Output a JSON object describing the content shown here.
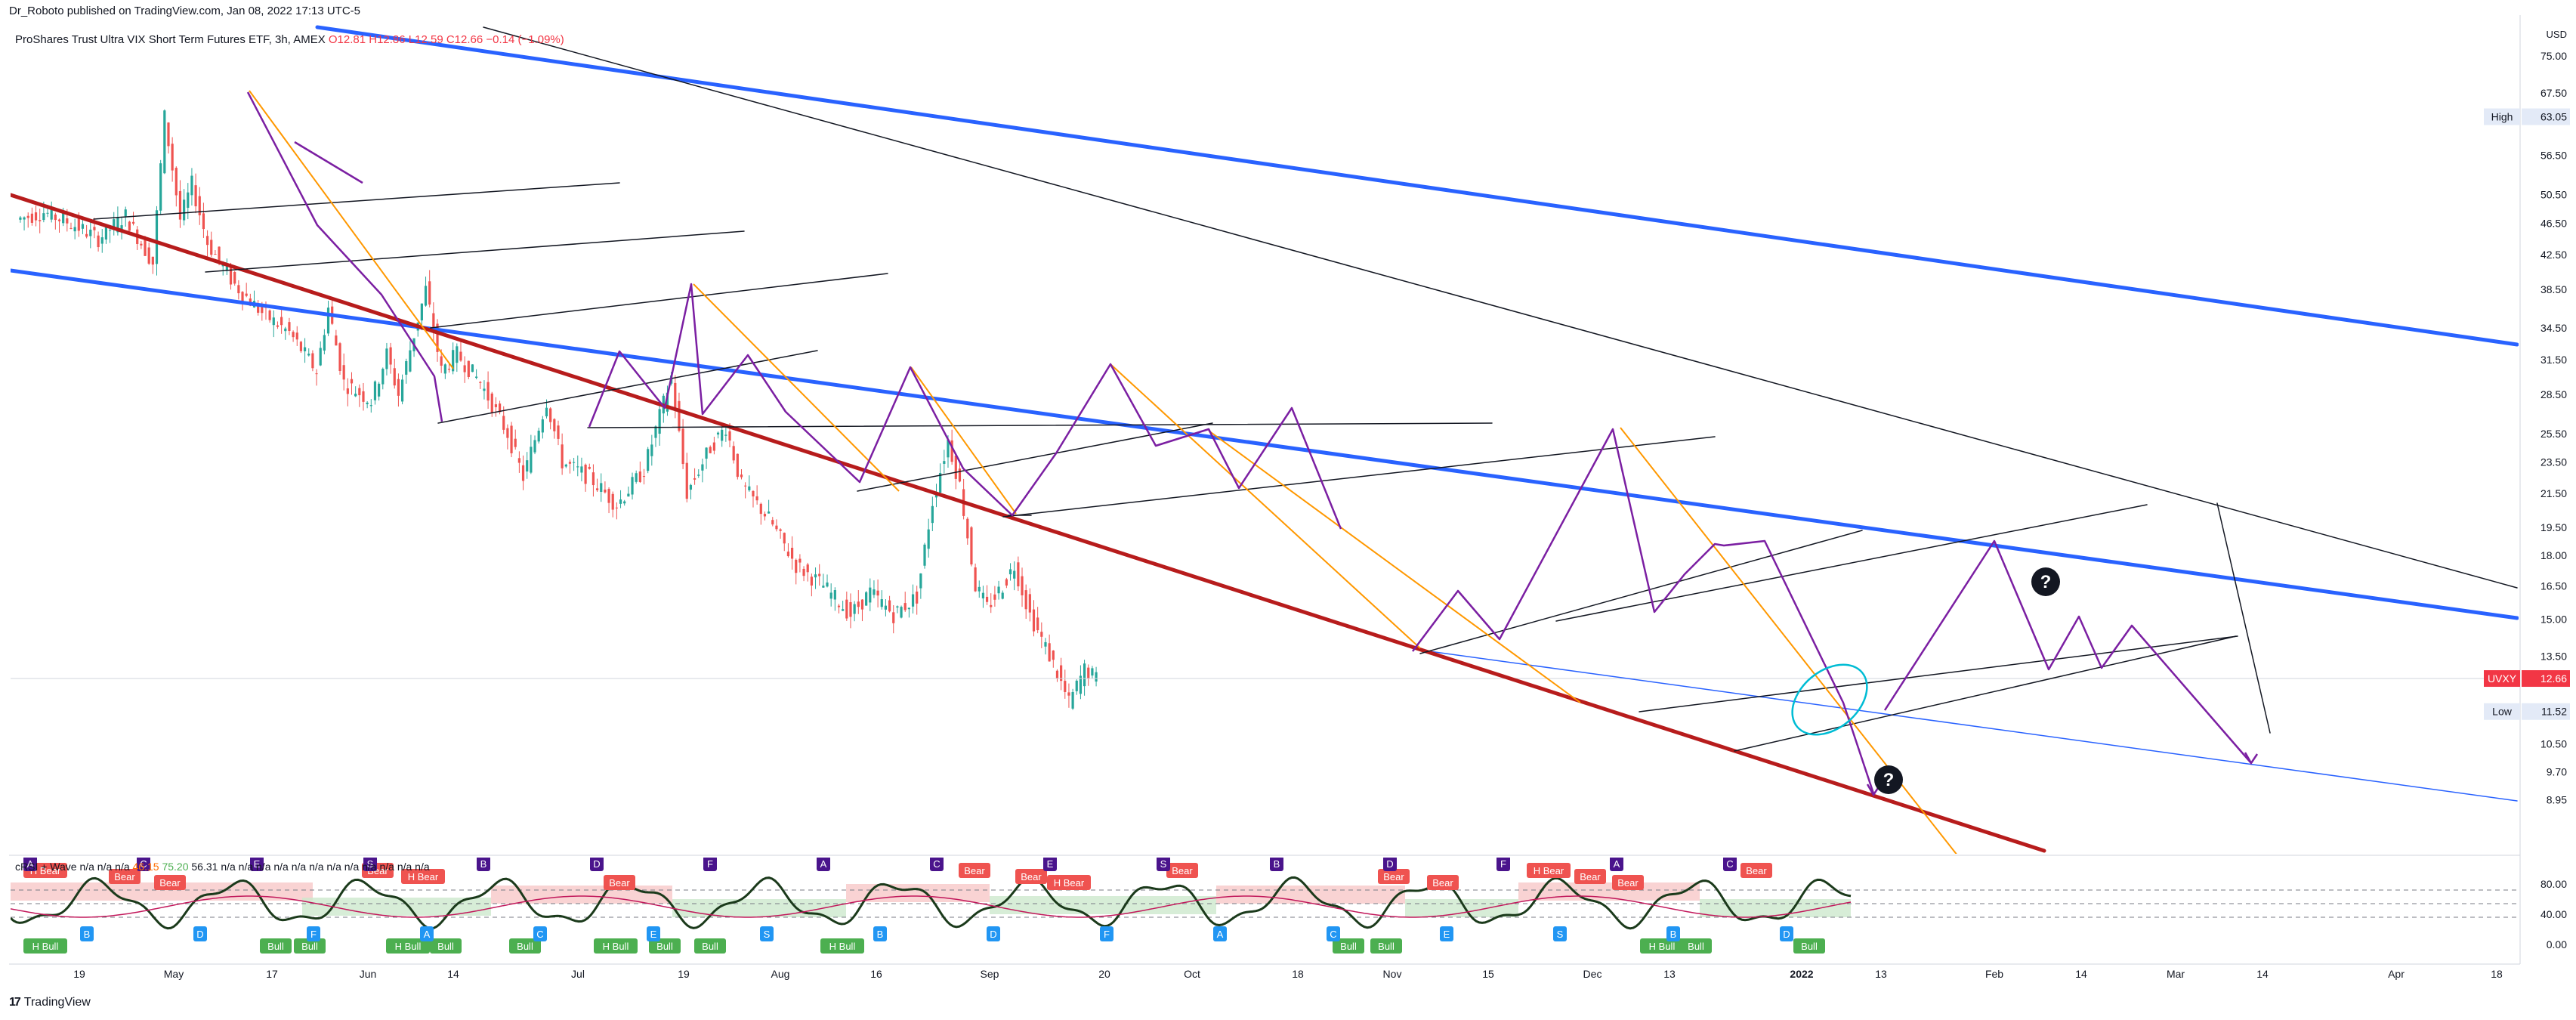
{
  "header": {
    "published": "Dr_Roboto published on TradingView.com, Jan 08, 2022 17:13 UTC-5",
    "symbol_title": "ProShares Trust Ultra VIX Short Term Futures ETF, 3h, AMEX",
    "ohlc": "O12.81  H12.86  L12.59  C12.66  −0.14 (−1.09%)"
  },
  "oscillator_title": {
    "label": "cRSI + Wave",
    "values_a": "n/a  n/a  n/a",
    "value_b": "46.15",
    "value_c": "75.20",
    "values_d": "56.31  n/a  n/a  n/a  n/a  n/a  n/a  n/a  n/a  n/a  n/a  n/a  n/a"
  },
  "footer": {
    "brand": "TradingView",
    "logo_glyph": "17"
  },
  "colors": {
    "blue_channel": "#2962ff",
    "red_support": "#b71c1c",
    "purple_wave": "#7b1fa2",
    "orange_line": "#ff9800",
    "candle_up": "#26a69a",
    "candle_down": "#ef5350",
    "price_badge": "#f23645",
    "cyan_ellipse": "#00bcd4",
    "bear_label": "#ef5350",
    "bull_label": "#4caf50",
    "letter_label": "#2196f3"
  },
  "chart_data": {
    "type": "line",
    "ticker": "UVXY",
    "timeframe": "3h",
    "currency": "USD",
    "y_axis_ticks": [
      "75.00",
      "67.50",
      "63.05",
      "56.50",
      "50.50",
      "46.50",
      "42.50",
      "38.50",
      "34.50",
      "31.50",
      "28.50",
      "25.50",
      "23.50",
      "21.50",
      "19.50",
      "18.00",
      "16.50",
      "15.00",
      "13.50",
      "12.66",
      "11.52",
      "10.50",
      "9.70",
      "8.95"
    ],
    "ylim": [
      8.4,
      78
    ],
    "scale": "log",
    "x_axis_ticks": [
      "19",
      "May",
      "17",
      "Jun",
      "14",
      "Jul",
      "19",
      "Aug",
      "16",
      "Sep",
      "20",
      "Oct",
      "18",
      "Nov",
      "15",
      "Dec",
      "13",
      "2022",
      "13",
      "Feb",
      "14",
      "Mar",
      "14",
      "Apr",
      "18"
    ],
    "price_labels": {
      "high": {
        "label": "High",
        "value": "63.05"
      },
      "last": {
        "label": "UVXY",
        "value": "12.66"
      },
      "low": {
        "label": "Low",
        "value": "11.52"
      }
    },
    "series": [
      {
        "name": "UVXY",
        "points": [
          {
            "date": "2021-04-05",
            "close": 47.0
          },
          {
            "date": "2021-04-12",
            "close": 48.0
          },
          {
            "date": "2021-04-19",
            "close": 46.5
          },
          {
            "date": "2021-04-26",
            "close": 44.5
          },
          {
            "date": "2021-05-03",
            "close": 47.5
          },
          {
            "date": "2021-05-10",
            "close": 41.5
          },
          {
            "date": "2021-05-13",
            "close": 63.0
          },
          {
            "date": "2021-05-17",
            "close": 47.0
          },
          {
            "date": "2021-05-20",
            "close": 52.0
          },
          {
            "date": "2021-05-24",
            "close": 44.0
          },
          {
            "date": "2021-05-31",
            "close": 39.0
          },
          {
            "date": "2021-06-07",
            "close": 36.0
          },
          {
            "date": "2021-06-14",
            "close": 34.0
          },
          {
            "date": "2021-06-21",
            "close": 30.5
          },
          {
            "date": "2021-06-24",
            "close": 36.5
          },
          {
            "date": "2021-06-28",
            "close": 29.5
          },
          {
            "date": "2021-07-05",
            "close": 28.0
          },
          {
            "date": "2021-07-09",
            "close": 32.0
          },
          {
            "date": "2021-07-12",
            "close": 28.5
          },
          {
            "date": "2021-07-19",
            "close": 38.5
          },
          {
            "date": "2021-07-23",
            "close": 30.5
          },
          {
            "date": "2021-07-27",
            "close": 32.0
          },
          {
            "date": "2021-08-02",
            "close": 29.5
          },
          {
            "date": "2021-08-09",
            "close": 25.5
          },
          {
            "date": "2021-08-13",
            "close": 22.5
          },
          {
            "date": "2021-08-19",
            "close": 28.0
          },
          {
            "date": "2021-08-23",
            "close": 23.5
          },
          {
            "date": "2021-08-30",
            "close": 22.5
          },
          {
            "date": "2021-09-06",
            "close": 20.8
          },
          {
            "date": "2021-09-13",
            "close": 23.0
          },
          {
            "date": "2021-09-20",
            "close": 30.0
          },
          {
            "date": "2021-09-24",
            "close": 21.5
          },
          {
            "date": "2021-09-30",
            "close": 24.5
          },
          {
            "date": "2021-10-04",
            "close": 26.0
          },
          {
            "date": "2021-10-08",
            "close": 22.0
          },
          {
            "date": "2021-10-15",
            "close": 20.0
          },
          {
            "date": "2021-10-22",
            "close": 17.5
          },
          {
            "date": "2021-10-29",
            "close": 16.5
          },
          {
            "date": "2021-11-05",
            "close": 15.2
          },
          {
            "date": "2021-11-10",
            "close": 16.2
          },
          {
            "date": "2021-11-16",
            "close": 15.2
          },
          {
            "date": "2021-11-22",
            "close": 16.0
          },
          {
            "date": "2021-11-26",
            "close": 21.0
          },
          {
            "date": "2021-11-30",
            "close": 25.0
          },
          {
            "date": "2021-12-03",
            "close": 22.0
          },
          {
            "date": "2021-12-07",
            "close": 16.5
          },
          {
            "date": "2021-12-10",
            "close": 15.5
          },
          {
            "date": "2021-12-14",
            "close": 16.5
          },
          {
            "date": "2021-12-17",
            "close": 17.5
          },
          {
            "date": "2021-12-21",
            "close": 15.2
          },
          {
            "date": "2021-12-27",
            "close": 13.2
          },
          {
            "date": "2021-12-31",
            "close": 11.8
          },
          {
            "date": "2022-01-04",
            "close": 13.0
          },
          {
            "date": "2022-01-07",
            "close": 12.66
          }
        ]
      }
    ],
    "oscillator": {
      "name": "cRSI + Wave",
      "y_ticks": [
        "80.00",
        "40.00",
        "0.00"
      ],
      "labels": [
        "H Bear",
        "Bear",
        "Bull",
        "H Bull",
        "A",
        "B",
        "C",
        "D",
        "E",
        "F",
        "S"
      ]
    }
  }
}
